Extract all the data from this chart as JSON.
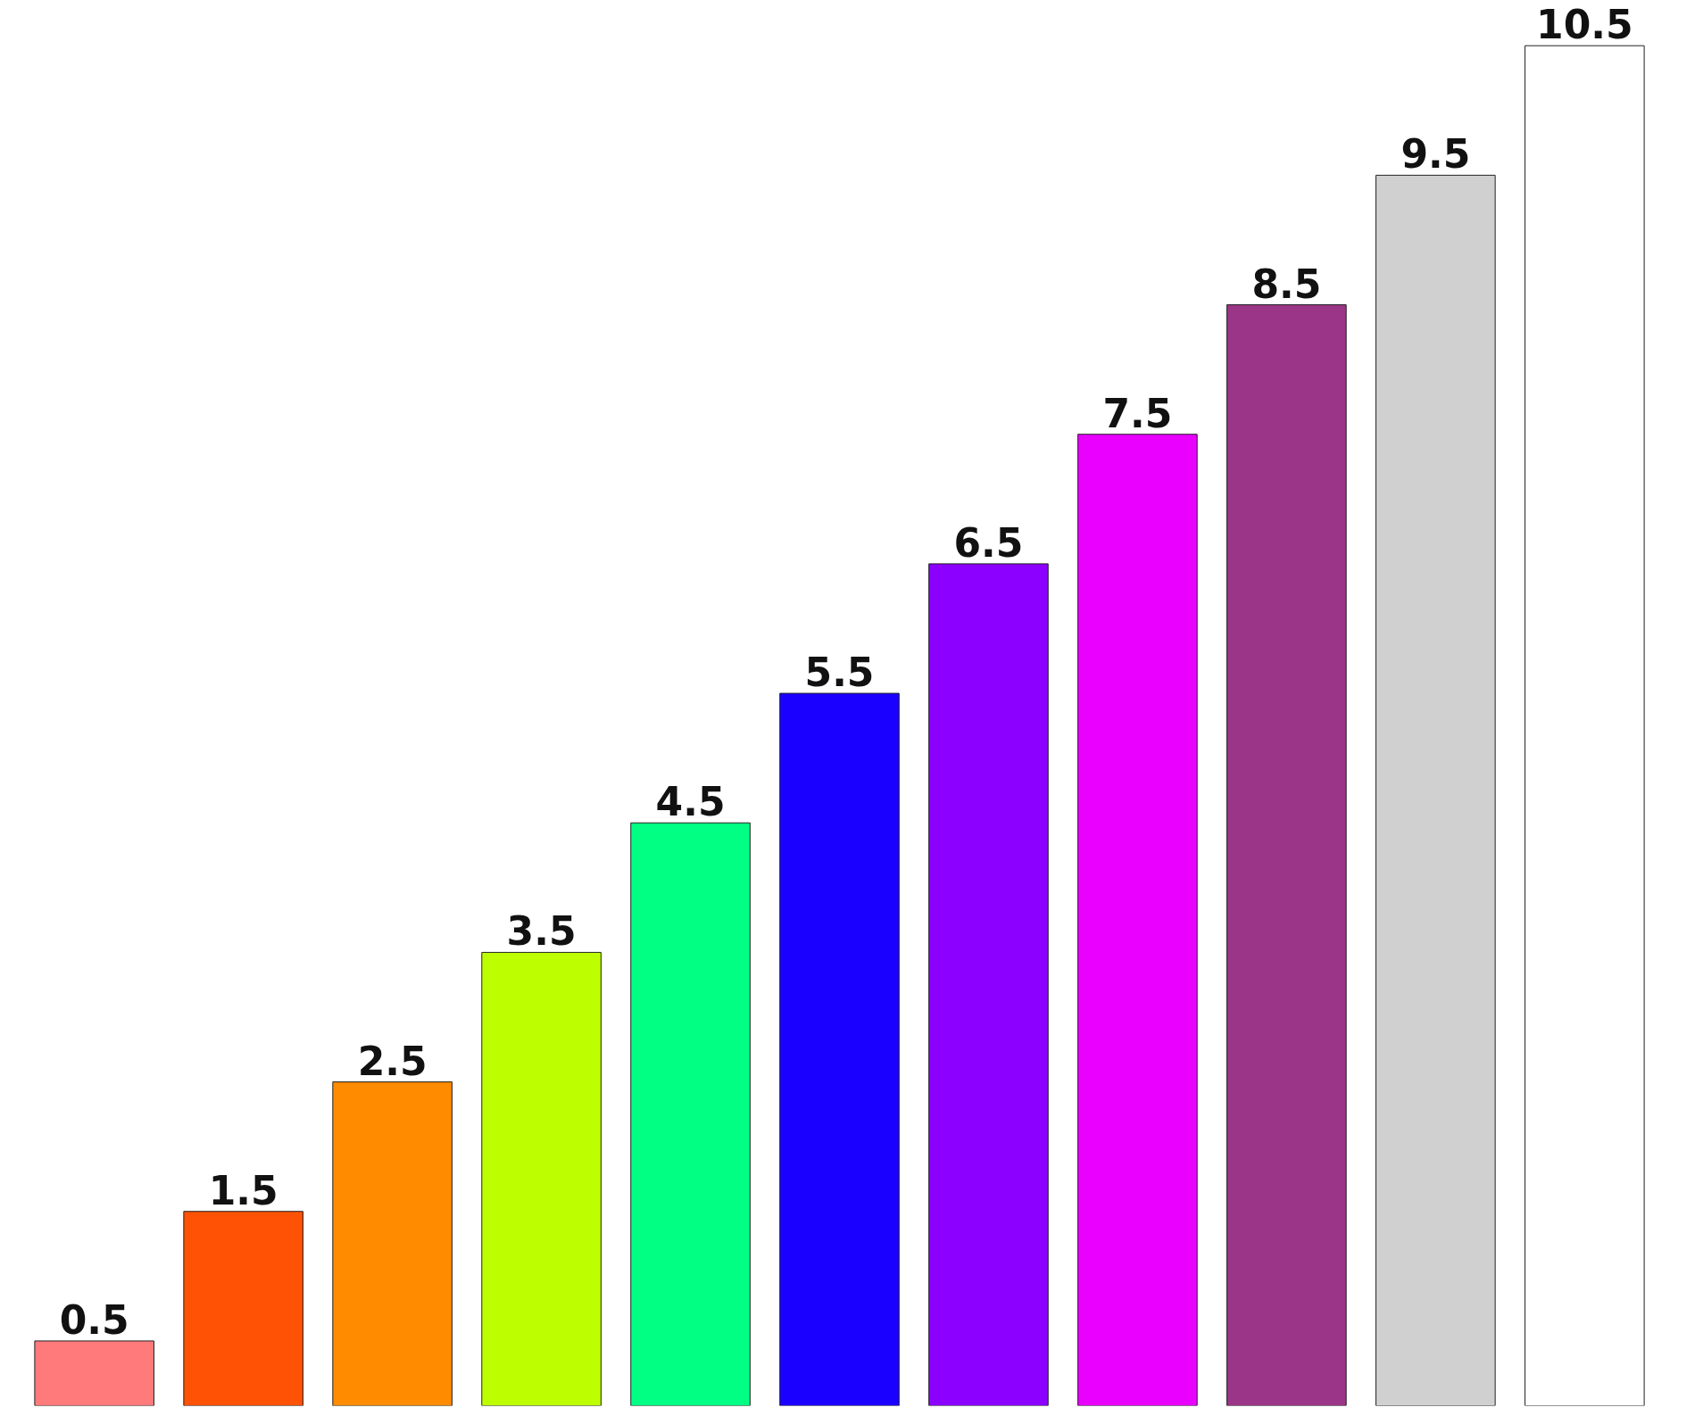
{
  "chart_data": {
    "type": "bar",
    "categories": [
      null,
      null,
      null,
      null,
      null,
      null,
      null,
      null,
      null,
      null,
      null
    ],
    "tick_labels": false,
    "data_labels": true,
    "colors": [
      "#ff7b7b",
      "#ff5204",
      "#ff8b00",
      "#bdff00",
      "#00ff82",
      "#1a00ff",
      "#8b00ff",
      "#e900ff",
      "#9b3587",
      "#d0d0d0",
      "#ffffff"
    ],
    "values": [
      0.5,
      1.5,
      2.5,
      3.5,
      4.5,
      5.5,
      6.5,
      7.5,
      8.5,
      9.5,
      10.5
    ]
  }
}
